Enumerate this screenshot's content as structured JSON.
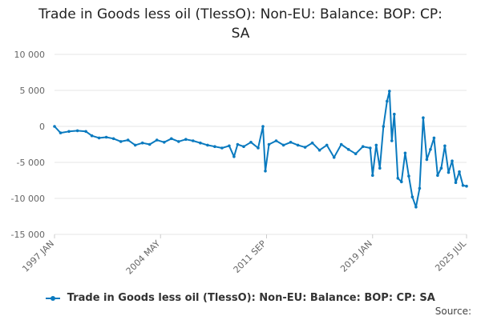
{
  "chart_data": {
    "type": "line",
    "title_lines": [
      "Trade in Goods less oil (TlessO): Non-EU: Balance: BOP: CP:",
      "SA"
    ],
    "xlabel": "",
    "ylabel": "",
    "ylim": [
      -15000,
      10000
    ],
    "xlim": [
      "1997-01",
      "2025-07"
    ],
    "y_ticks": [
      10000,
      5000,
      0,
      -5000,
      -10000,
      -15000
    ],
    "y_tick_labels": [
      "10 000",
      "5 000",
      "0",
      "-5 000",
      "-10 000",
      "-15 000"
    ],
    "x_ticks": [
      "1997-01",
      "2004-05",
      "2011-09",
      "2019-01",
      "2025-07"
    ],
    "x_tick_labels": [
      "1997 JAN",
      "2004 MAY",
      "2011 SEP",
      "2019 JAN",
      "2025 JUL"
    ],
    "grid": "horizontal",
    "legend_position": "bottom",
    "color": "#0a7abf",
    "series": [
      {
        "name": "Trade in Goods less oil (TlessO): Non-EU: Balance: BOP: CP: SA",
        "points": [
          [
            "1997-01",
            0
          ],
          [
            "1997-06",
            -900
          ],
          [
            "1998-01",
            -700
          ],
          [
            "1998-08",
            -600
          ],
          [
            "1999-03",
            -700
          ],
          [
            "1999-08",
            -1300
          ],
          [
            "2000-02",
            -1600
          ],
          [
            "2000-08",
            -1500
          ],
          [
            "2001-02",
            -1700
          ],
          [
            "2001-08",
            -2100
          ],
          [
            "2002-02",
            -1900
          ],
          [
            "2002-08",
            -2600
          ],
          [
            "2003-02",
            -2300
          ],
          [
            "2003-08",
            -2500
          ],
          [
            "2004-02",
            -1900
          ],
          [
            "2004-08",
            -2200
          ],
          [
            "2005-02",
            -1700
          ],
          [
            "2005-08",
            -2100
          ],
          [
            "2006-02",
            -1800
          ],
          [
            "2006-08",
            -2000
          ],
          [
            "2007-02",
            -2300
          ],
          [
            "2007-08",
            -2600
          ],
          [
            "2008-02",
            -2800
          ],
          [
            "2008-08",
            -3000
          ],
          [
            "2009-02",
            -2700
          ],
          [
            "2009-06",
            -4200
          ],
          [
            "2009-09",
            -2500
          ],
          [
            "2010-02",
            -2800
          ],
          [
            "2010-08",
            -2200
          ],
          [
            "2011-02",
            -3000
          ],
          [
            "2011-06",
            0
          ],
          [
            "2011-08",
            -6200
          ],
          [
            "2011-11",
            -2500
          ],
          [
            "2012-05",
            -2000
          ],
          [
            "2012-11",
            -2600
          ],
          [
            "2013-05",
            -2200
          ],
          [
            "2013-11",
            -2600
          ],
          [
            "2014-05",
            -2900
          ],
          [
            "2014-11",
            -2300
          ],
          [
            "2015-05",
            -3300
          ],
          [
            "2015-11",
            -2600
          ],
          [
            "2016-05",
            -4300
          ],
          [
            "2016-11",
            -2500
          ],
          [
            "2017-05",
            -3200
          ],
          [
            "2017-11",
            -3800
          ],
          [
            "2018-05",
            -2800
          ],
          [
            "2018-11",
            -3000
          ],
          [
            "2019-01",
            -6800
          ],
          [
            "2019-04",
            -2600
          ],
          [
            "2019-07",
            -5800
          ],
          [
            "2019-10",
            0
          ],
          [
            "2020-01",
            3500
          ],
          [
            "2020-03",
            4900
          ],
          [
            "2020-05",
            -2000
          ],
          [
            "2020-07",
            1700
          ],
          [
            "2020-10",
            -7200
          ],
          [
            "2021-01",
            -7700
          ],
          [
            "2021-04",
            -3700
          ],
          [
            "2021-07",
            -6900
          ],
          [
            "2021-10",
            -9800
          ],
          [
            "2022-01",
            -11200
          ],
          [
            "2022-04",
            -8600
          ],
          [
            "2022-07",
            1200
          ],
          [
            "2022-10",
            -4600
          ],
          [
            "2023-01",
            -3200
          ],
          [
            "2023-04",
            -1600
          ],
          [
            "2023-07",
            -6800
          ],
          [
            "2023-10",
            -5800
          ],
          [
            "2024-01",
            -2700
          ],
          [
            "2024-04",
            -6400
          ],
          [
            "2024-07",
            -4800
          ],
          [
            "2024-10",
            -7800
          ],
          [
            "2025-01",
            -6300
          ],
          [
            "2025-04",
            -8200
          ],
          [
            "2025-07",
            -8300
          ]
        ]
      }
    ]
  },
  "source_label": "Source:"
}
